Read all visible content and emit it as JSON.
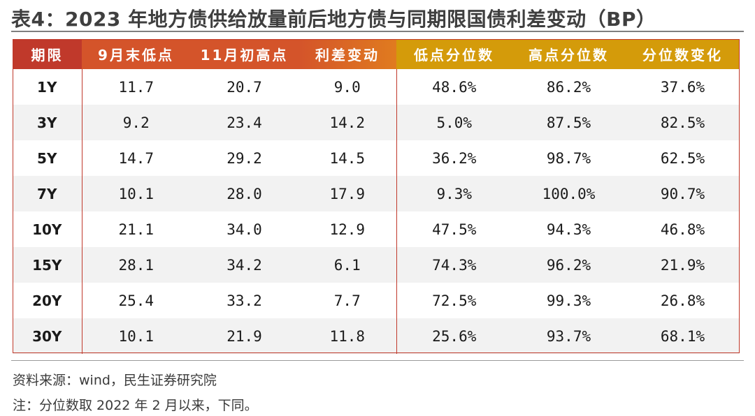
{
  "title": "表4：2023 年地方债供给放量前后地方债与同期限国债利差变动（BP）",
  "colors": {
    "header_red": "#c0392b",
    "header_orange_start": "#d4542a",
    "header_orange_end": "#e07b1f",
    "header_gold": "#d49b0a",
    "row_stripe": "#f2f2f2"
  },
  "chart_data": {
    "type": "table",
    "columns": [
      "期限",
      "9月末低点",
      "11月初高点",
      "利差变动",
      "低点分位数",
      "高点分位数",
      "分位数变化"
    ],
    "rows": [
      [
        "1Y",
        "11.7",
        "20.7",
        "9.0",
        "48.6%",
        "86.2%",
        "37.6%"
      ],
      [
        "3Y",
        "9.2",
        "23.4",
        "14.2",
        "5.0%",
        "87.5%",
        "82.5%"
      ],
      [
        "5Y",
        "14.7",
        "29.2",
        "14.5",
        "36.2%",
        "98.7%",
        "62.5%"
      ],
      [
        "7Y",
        "10.1",
        "28.0",
        "17.9",
        "9.3%",
        "100.0%",
        "90.7%"
      ],
      [
        "10Y",
        "21.1",
        "34.0",
        "12.9",
        "47.5%",
        "94.3%",
        "46.8%"
      ],
      [
        "15Y",
        "28.1",
        "34.2",
        "6.1",
        "74.3%",
        "96.2%",
        "21.9%"
      ],
      [
        "20Y",
        "25.4",
        "33.2",
        "7.7",
        "72.5%",
        "99.3%",
        "26.8%"
      ],
      [
        "30Y",
        "10.1",
        "21.9",
        "11.8",
        "25.6%",
        "93.7%",
        "68.1%"
      ]
    ]
  },
  "footer": {
    "source": "资料来源：wind，民生证券研究院",
    "note": "注：分位数取 2022 年 2 月以来，下同。"
  }
}
